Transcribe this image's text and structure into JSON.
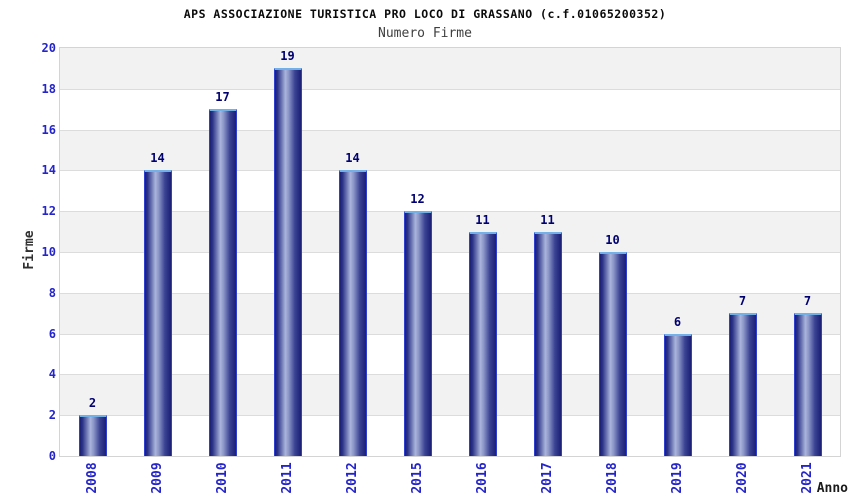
{
  "chart_data": {
    "type": "bar",
    "title": "APS ASSOCIAZIONE TURISTICA PRO LOCO DI GRASSANO (c.f.01065200352)",
    "subtitle": "Numero Firme",
    "xlabel": "Anno",
    "ylabel": "Firme",
    "categories": [
      "2008",
      "2009",
      "2010",
      "2011",
      "2012",
      "2015",
      "2016",
      "2017",
      "2018",
      "2019",
      "2020",
      "2021"
    ],
    "values": [
      2,
      14,
      17,
      19,
      14,
      12,
      11,
      11,
      10,
      6,
      7,
      7
    ],
    "ylim": [
      0,
      20
    ],
    "yticks": [
      0,
      2,
      4,
      6,
      8,
      10,
      12,
      14,
      16,
      18,
      20
    ],
    "grid": true,
    "legend": false,
    "band_style": "alternating horizontal stripes, 2-unit intervals, gray on top",
    "colors": {
      "tick_label": "#2424cc",
      "value_label": "#000070",
      "bar_dark": "#1b1f76",
      "bar_light": "#aab4dc",
      "bar_side_border": "#2f3fd0",
      "bar_top_cap": "#74b0e8",
      "band_gray": "#f2f2f2",
      "band_white": "#ffffff",
      "gridline": "#dcdcdc",
      "title": "#0a0a0a",
      "subtitle": "#3f3f3f",
      "axis_title": "#303030"
    }
  }
}
